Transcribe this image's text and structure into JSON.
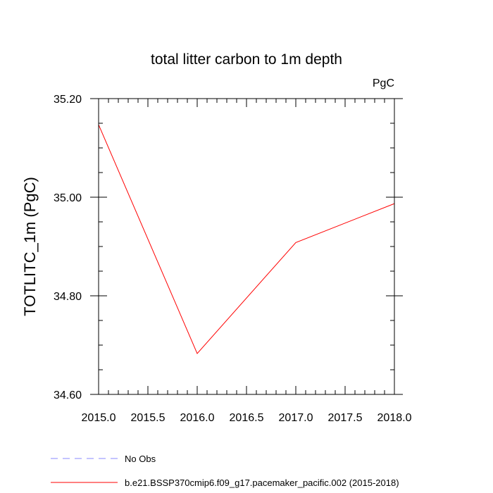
{
  "chart_data": {
    "type": "line",
    "title": "total litter carbon to 1m depth",
    "units_label": "PgC",
    "xlabel": "",
    "ylabel": "TOTLITC_1m  (PgC)",
    "xlim": [
      2015.0,
      2018.0
    ],
    "ylim": [
      34.6,
      35.2
    ],
    "xticks": [
      2015.0,
      2015.5,
      2016.0,
      2016.5,
      2017.0,
      2017.5,
      2018.0
    ],
    "xtick_labels": [
      "2015.0",
      "2015.5",
      "2016.0",
      "2016.5",
      "2017.0",
      "2017.5",
      "2018.0"
    ],
    "yticks": [
      34.6,
      34.8,
      35.0,
      35.2
    ],
    "ytick_labels": [
      "34.60",
      "34.80",
      "35.00",
      "35.20"
    ],
    "grid": false,
    "legend_position": "bottom",
    "series": [
      {
        "name": "b.e21.BSSP370cmip6.f09_g17.pacemaker_pacific.002 (2015-2018)",
        "color": "#ff0000",
        "style": "solid",
        "x": [
          2015.0,
          2016.0,
          2017.0,
          2018.0
        ],
        "values": [
          35.147,
          34.683,
          34.908,
          34.987
        ]
      }
    ],
    "legend": [
      {
        "label": "No Obs",
        "color": "#8888ff",
        "style": "dashed"
      },
      {
        "label": "b.e21.BSSP370cmip6.f09_g17.pacemaker_pacific.002 (2015-2018)",
        "color": "#ff0000",
        "style": "solid"
      }
    ]
  }
}
